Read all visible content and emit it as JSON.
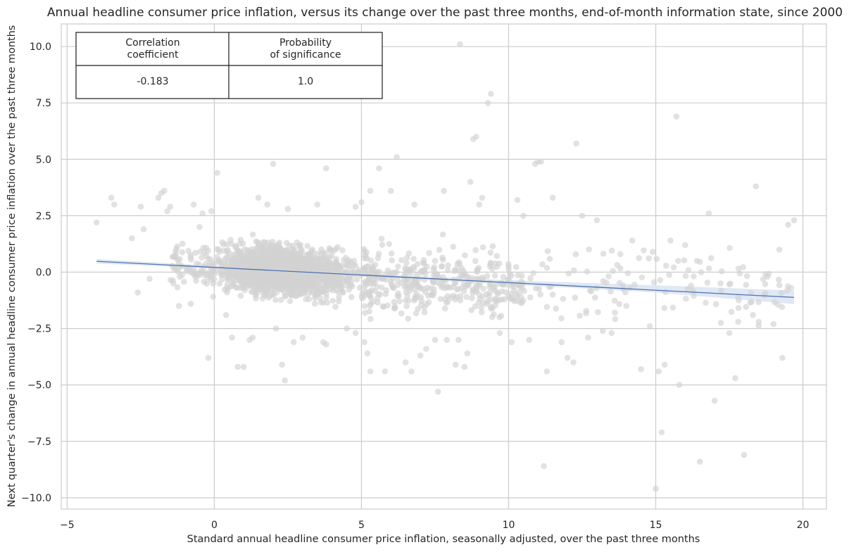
{
  "chart_data": {
    "type": "scatter",
    "title": "Annual headline consumer price inflation, versus its change over the past three months, end-of-month information state, since 2000",
    "xlabel": "Standard annual headline consumer price inflation, seasonally adjusted, over the past three months",
    "ylabel": "Next quarter's change in annual headline consumer price inflation over the past three months",
    "xlim": [
      -5.2,
      20.8
    ],
    "ylim": [
      -10.5,
      11.0
    ],
    "xticks": [
      -5,
      0,
      5,
      10,
      15,
      20
    ],
    "yticks": [
      -10.0,
      -7.5,
      -5.0,
      -2.5,
      0.0,
      2.5,
      5.0,
      7.5,
      10.0
    ],
    "grid": true,
    "point_color": "#d3d3d3",
    "line_color": "#4c72b0",
    "band_color": "#dde6f4",
    "regression": {
      "x": [
        -4.0,
        19.7
      ],
      "y": [
        0.48,
        -1.12
      ]
    },
    "confidence_band": {
      "x": [
        -4.0,
        0,
        5,
        10,
        15,
        19.7
      ],
      "lower": [
        0.38,
        0.16,
        -0.18,
        -0.55,
        -0.9,
        -1.42
      ],
      "upper": [
        0.58,
        0.28,
        -0.07,
        -0.36,
        -0.58,
        -0.82
      ]
    },
    "outliers": [
      [
        -4.0,
        2.2
      ],
      [
        -3.5,
        3.3
      ],
      [
        -3.4,
        3.0
      ],
      [
        -2.8,
        1.5
      ],
      [
        -2.6,
        -0.9
      ],
      [
        -2.5,
        2.9
      ],
      [
        -2.4,
        1.9
      ],
      [
        -2.2,
        -0.3
      ],
      [
        -1.9,
        3.3
      ],
      [
        -1.8,
        3.5
      ],
      [
        -1.7,
        3.6
      ],
      [
        -1.6,
        2.7
      ],
      [
        -1.5,
        2.9
      ],
      [
        -1.2,
        -1.5
      ],
      [
        -0.8,
        -1.4
      ],
      [
        -0.7,
        3.0
      ],
      [
        -0.5,
        2.0
      ],
      [
        -0.4,
        2.6
      ],
      [
        -0.1,
        2.7
      ],
      [
        -0.2,
        -3.8
      ],
      [
        0.1,
        4.4
      ],
      [
        0.4,
        -1.9
      ],
      [
        0.6,
        -2.9
      ],
      [
        0.8,
        -4.2
      ],
      [
        1.0,
        -4.2
      ],
      [
        1.2,
        -3.0
      ],
      [
        1.3,
        -2.9
      ],
      [
        1.5,
        3.3
      ],
      [
        1.8,
        3.0
      ],
      [
        2.0,
        4.8
      ],
      [
        2.1,
        -2.5
      ],
      [
        2.3,
        -4.1
      ],
      [
        2.4,
        -4.8
      ],
      [
        2.5,
        2.8
      ],
      [
        2.7,
        -3.1
      ],
      [
        3.0,
        -2.9
      ],
      [
        3.5,
        3.0
      ],
      [
        3.7,
        -3.1
      ],
      [
        3.8,
        -3.2
      ],
      [
        3.8,
        4.6
      ],
      [
        4.5,
        -2.5
      ],
      [
        4.8,
        -2.7
      ],
      [
        4.8,
        2.9
      ],
      [
        5.0,
        3.1
      ],
      [
        5.1,
        -3.1
      ],
      [
        5.2,
        -3.6
      ],
      [
        5.3,
        -4.4
      ],
      [
        5.3,
        3.6
      ],
      [
        5.6,
        4.6
      ],
      [
        5.8,
        -4.4
      ],
      [
        6.0,
        3.6
      ],
      [
        6.2,
        5.1
      ],
      [
        6.5,
        -4.0
      ],
      [
        6.7,
        -4.4
      ],
      [
        6.8,
        3.0
      ],
      [
        7.0,
        -3.7
      ],
      [
        7.2,
        -3.4
      ],
      [
        7.5,
        -3.0
      ],
      [
        7.6,
        -5.3
      ],
      [
        7.8,
        3.6
      ],
      [
        7.9,
        -3.0
      ],
      [
        8.2,
        -4.1
      ],
      [
        8.3,
        -3.0
      ],
      [
        8.5,
        -4.2
      ],
      [
        8.6,
        -3.6
      ],
      [
        8.7,
        4.0
      ],
      [
        8.8,
        5.9
      ],
      [
        8.9,
        6.0
      ],
      [
        9.0,
        3.0
      ],
      [
        9.1,
        3.3
      ],
      [
        9.3,
        7.5
      ],
      [
        9.4,
        7.9
      ],
      [
        8.35,
        10.1
      ],
      [
        9.7,
        -2.7
      ],
      [
        10.1,
        -3.1
      ],
      [
        10.3,
        3.2
      ],
      [
        10.5,
        2.5
      ],
      [
        10.7,
        -3.0
      ],
      [
        10.9,
        4.8
      ],
      [
        11.0,
        4.9
      ],
      [
        11.1,
        4.9
      ],
      [
        11.2,
        -8.6
      ],
      [
        11.3,
        -4.4
      ],
      [
        11.5,
        3.3
      ],
      [
        11.8,
        -3.1
      ],
      [
        12.0,
        -3.8
      ],
      [
        12.2,
        -4.0
      ],
      [
        12.3,
        5.7
      ],
      [
        12.5,
        2.5
      ],
      [
        12.7,
        -2.9
      ],
      [
        13.0,
        2.3
      ],
      [
        13.2,
        -2.6
      ],
      [
        13.5,
        -2.7
      ],
      [
        13.8,
        0.8
      ],
      [
        14.0,
        -1.5
      ],
      [
        14.2,
        1.4
      ],
      [
        14.5,
        -4.3
      ],
      [
        14.8,
        -2.4
      ],
      [
        14.9,
        0.9
      ],
      [
        15.0,
        -9.6
      ],
      [
        15.1,
        -4.4
      ],
      [
        15.2,
        -7.1
      ],
      [
        15.3,
        -4.1
      ],
      [
        15.5,
        1.4
      ],
      [
        15.7,
        6.9
      ],
      [
        15.8,
        -5.0
      ],
      [
        16.0,
        1.2
      ],
      [
        16.2,
        -0.6
      ],
      [
        16.4,
        0.5
      ],
      [
        16.5,
        -8.4
      ],
      [
        16.8,
        2.6
      ],
      [
        17.0,
        -5.7
      ],
      [
        17.2,
        -0.5
      ],
      [
        17.5,
        -2.7
      ],
      [
        17.7,
        -4.7
      ],
      [
        17.8,
        -2.2
      ],
      [
        18.0,
        -8.1
      ],
      [
        18.3,
        -1.9
      ],
      [
        18.4,
        3.8
      ],
      [
        18.5,
        -2.2
      ],
      [
        19.0,
        -2.3
      ],
      [
        19.2,
        1.0
      ],
      [
        19.3,
        -3.8
      ],
      [
        19.5,
        2.1
      ],
      [
        19.7,
        2.3
      ],
      [
        19.6,
        -0.7
      ]
    ]
  },
  "stats_table": {
    "headers": [
      [
        "Correlation",
        "coefficient"
      ],
      [
        "Probability",
        "of significance"
      ]
    ],
    "values": [
      "-0.183",
      "1.0"
    ]
  }
}
